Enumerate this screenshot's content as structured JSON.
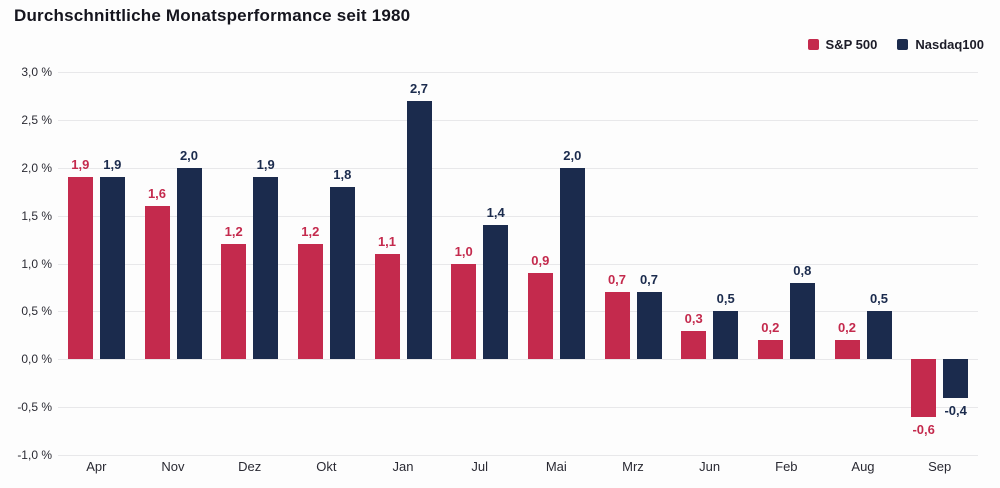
{
  "title": "Durchschnittliche Monatsperformance seit 1980",
  "chart_data": {
    "type": "bar",
    "title": "Durchschnittliche Monatsperformance seit 1980",
    "categories": [
      "Apr",
      "Nov",
      "Dez",
      "Okt",
      "Jan",
      "Jul",
      "Mai",
      "Mrz",
      "Jun",
      "Feb",
      "Aug",
      "Sep"
    ],
    "series": [
      {
        "name": "S&P 500",
        "color": "#c42a4d",
        "values": [
          1.9,
          1.6,
          1.2,
          1.2,
          1.1,
          1.0,
          0.9,
          0.7,
          0.3,
          0.2,
          0.2,
          -0.6
        ],
        "labels": [
          "1,9",
          "1,6",
          "1,2",
          "1,2",
          "1,1",
          "1,0",
          "0,9",
          "0,7",
          "0,3",
          "0,2",
          "0,2",
          "-0,6"
        ]
      },
      {
        "name": "Nasdaq100",
        "color": "#1b2b4d",
        "values": [
          1.9,
          2.0,
          1.9,
          1.8,
          2.7,
          1.4,
          2.0,
          0.7,
          0.5,
          0.8,
          0.5,
          -0.4
        ],
        "labels": [
          "1,9",
          "2,0",
          "1,9",
          "1,8",
          "2,7",
          "1,4",
          "2,0",
          "0,7",
          "0,5",
          "0,8",
          "0,5",
          "-0,4"
        ]
      }
    ],
    "y_ticks": [
      {
        "value": 3.0,
        "label": "3,0 %"
      },
      {
        "value": 2.5,
        "label": "2,5 %"
      },
      {
        "value": 2.0,
        "label": "2,0 %"
      },
      {
        "value": 1.5,
        "label": "1,5 %"
      },
      {
        "value": 1.0,
        "label": "1,0 %"
      },
      {
        "value": 0.5,
        "label": "0,5 %"
      },
      {
        "value": 0.0,
        "label": "0,0 %"
      },
      {
        "value": -0.5,
        "label": "-0,5 %"
      },
      {
        "value": -1.0,
        "label": "-1,0 %"
      }
    ],
    "ylim": [
      -1.0,
      3.0
    ],
    "grid": true,
    "legend_position": "top-right"
  }
}
